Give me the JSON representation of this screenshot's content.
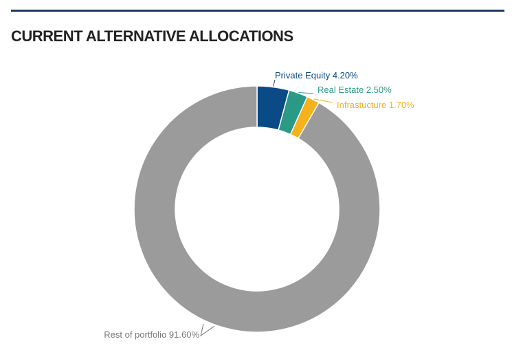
{
  "title": "CURRENT ALTERNATIVE ALLOCATIONS",
  "colors": {
    "rule": "#1f3a5f",
    "title": "#222222"
  },
  "chart_data": {
    "type": "pie",
    "donut": true,
    "slices": [
      {
        "name": "Private Equity",
        "value": 4.2,
        "display": "Private Equity 4.20%",
        "color": "#0a4a86",
        "label_color": "#0a4a86"
      },
      {
        "name": "Real Estate",
        "value": 2.5,
        "display": "Real Estate 2.50%",
        "color": "#2a9a86",
        "label_color": "#2a9a86"
      },
      {
        "name": "Infrastucture",
        "value": 1.7,
        "display": "Infrastucture 1.70%",
        "color": "#f6b21b",
        "label_color": "#f6b21b"
      },
      {
        "name": "Rest of portfolio",
        "value": 91.6,
        "display": "Rest of portfolio 91.60%",
        "color": "#9b9b9b",
        "label_color": "#777777"
      }
    ]
  }
}
